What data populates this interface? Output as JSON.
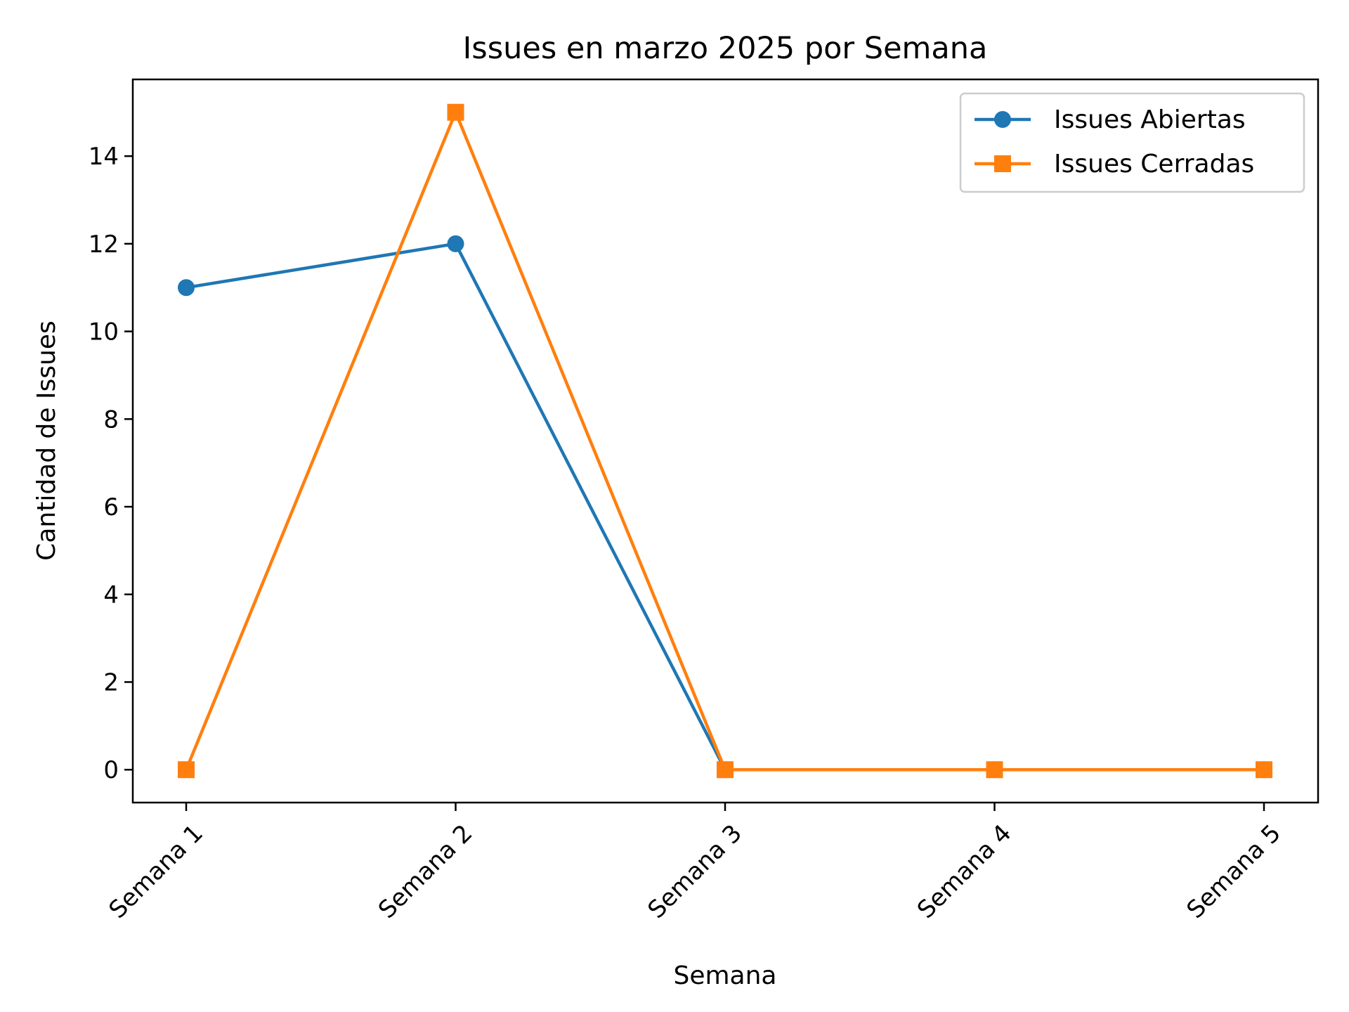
{
  "chart_data": {
    "type": "line",
    "title": "Issues en marzo 2025 por Semana",
    "xlabel": "Semana",
    "ylabel": "Cantidad de Issues",
    "categories": [
      "Semana 1",
      "Semana 2",
      "Semana 3",
      "Semana 4",
      "Semana 5"
    ],
    "ylim": [
      -0.75,
      15.75
    ],
    "yticks": [
      0,
      2,
      4,
      6,
      8,
      10,
      12,
      14
    ],
    "grid": false,
    "legend_position": "top-right",
    "series": [
      {
        "name": "Issues Abiertas",
        "color": "#1f77b4",
        "marker": "circle",
        "values": [
          11,
          12,
          0,
          0,
          0
        ]
      },
      {
        "name": "Issues Cerradas",
        "color": "#ff7f0e",
        "marker": "square",
        "values": [
          0,
          15,
          0,
          0,
          0
        ]
      }
    ]
  }
}
